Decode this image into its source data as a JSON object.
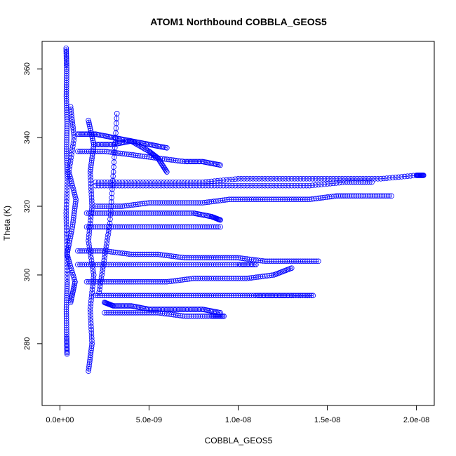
{
  "chart_data": {
    "type": "scatter",
    "title": "ATOM1 Northbound COBBLA_GEOS5",
    "xlabel": "COBBLA_GEOS5",
    "ylabel": "Theta (K)",
    "xlim": [
      -1e-09,
      2.1e-08
    ],
    "ylim": [
      262,
      368
    ],
    "x_ticks": [
      {
        "value": 0,
        "label": "0.0e+00"
      },
      {
        "value": 5e-09,
        "label": "5.0e-09"
      },
      {
        "value": 1e-08,
        "label": "1.0e-08"
      },
      {
        "value": 1.5e-08,
        "label": "1.5e-08"
      },
      {
        "value": 2e-08,
        "label": "2.0e-08"
      }
    ],
    "y_ticks": [
      {
        "value": 280,
        "label": "280"
      },
      {
        "value": 300,
        "label": "300"
      },
      {
        "value": 320,
        "label": "320"
      },
      {
        "value": 340,
        "label": "340"
      },
      {
        "value": 360,
        "label": "360"
      }
    ],
    "grid": false,
    "marker": "open-circle",
    "connected": true,
    "color": "#0000ff",
    "series": [
      {
        "x": [
          3.5e-10,
          3.8e-10,
          3.6e-10,
          4e-10,
          3.7e-10,
          4.2e-10,
          3.5e-10,
          3.9e-10,
          4.1e-10,
          3.6e-10,
          3.8e-10,
          4e-10
        ],
        "y": [
          366,
          360,
          352,
          344,
          336,
          328,
          318,
          308,
          298,
          290,
          282,
          277
        ]
      },
      {
        "x": [
          6e-10,
          8e-10,
          5e-10,
          9e-10,
          7e-10,
          4e-10,
          8.5e-10,
          6e-10
        ],
        "y": [
          349,
          340,
          330,
          322,
          314,
          306,
          298,
          292
        ]
      },
      {
        "x": [
          1.6e-09,
          1.8e-09,
          1.7e-09,
          1.9e-09,
          1.6e-09,
          1.8e-09,
          1.7e-09,
          1.9e-09,
          1.6e-09
        ],
        "y": [
          272,
          280,
          290,
          300,
          310,
          320,
          330,
          338,
          345
        ]
      },
      {
        "x": [
          2.2e-09,
          2.5e-09,
          2.8e-09,
          3e-09,
          3.2e-09
        ],
        "y": [
          295,
          305,
          315,
          330,
          347
        ]
      },
      {
        "x": [
          1e-09,
          2e-09,
          3e-09,
          4e-09,
          5e-09,
          6e-09
        ],
        "y": [
          341,
          341,
          340,
          339,
          338,
          337
        ]
      },
      {
        "x": [
          1e-09,
          2.5e-09,
          4e-09,
          5.5e-09,
          7e-09,
          8e-09,
          9e-09
        ],
        "y": [
          336,
          336,
          335,
          334,
          333,
          333,
          332
        ]
      },
      {
        "x": [
          2e-09,
          4e-09,
          6e-09,
          8e-09,
          1e-08,
          1.2e-08,
          1.4e-08,
          1.6e-08,
          1.8e-08,
          2e-08,
          2.04e-08
        ],
        "y": [
          327,
          327,
          327,
          327,
          328,
          328,
          328,
          328,
          328,
          329,
          329
        ]
      },
      {
        "x": [
          2e-09,
          4e-09,
          6e-09,
          8e-09,
          1e-08,
          1.2e-08,
          1.4e-08,
          1.6e-08,
          1.75e-08
        ],
        "y": [
          326,
          326,
          326,
          326,
          326,
          326,
          326,
          327,
          327
        ]
      },
      {
        "x": [
          2e-09,
          3.5e-09,
          5e-09,
          6.5e-09,
          8e-09,
          9.5e-09,
          1.1e-08,
          1.25e-08,
          1.4e-08,
          1.55e-08,
          1.7e-08,
          1.86e-08
        ],
        "y": [
          320,
          320,
          321,
          321,
          321,
          322,
          322,
          322,
          322,
          323,
          323,
          323
        ]
      },
      {
        "x": [
          1.5e-09,
          3e-09,
          4.5e-09,
          6e-09,
          7.5e-09,
          8.5e-09,
          9e-09
        ],
        "y": [
          318,
          318,
          318,
          318,
          318,
          317,
          316
        ]
      },
      {
        "x": [
          1.5e-09,
          3e-09,
          4.5e-09,
          6e-09,
          7.5e-09,
          9e-09
        ],
        "y": [
          314,
          314,
          314,
          314,
          314,
          314
        ]
      },
      {
        "x": [
          1e-09,
          2.5e-09,
          4e-09,
          5.5e-09,
          7e-09,
          8.5e-09,
          1e-08,
          1.15e-08,
          1.3e-08,
          1.45e-08
        ],
        "y": [
          307,
          307,
          306,
          306,
          305,
          305,
          305,
          304,
          304,
          304
        ]
      },
      {
        "x": [
          1e-09,
          2.5e-09,
          4e-09,
          5.5e-09,
          7e-09,
          8.5e-09,
          1e-08,
          1.1e-08
        ],
        "y": [
          303,
          303,
          303,
          303,
          303,
          303,
          303,
          303
        ]
      },
      {
        "x": [
          1.5e-09,
          3e-09,
          4.5e-09,
          6e-09,
          7.5e-09,
          9e-09,
          1.05e-08,
          1.2e-08,
          1.3e-08
        ],
        "y": [
          298,
          298,
          298,
          298,
          299,
          299,
          299,
          300,
          302
        ]
      },
      {
        "x": [
          2e-09,
          3.5e-09,
          5e-09,
          6.5e-09,
          8e-09,
          9.5e-09,
          1.1e-08,
          1.2e-08,
          1.3e-08,
          1.42e-08
        ],
        "y": [
          294,
          294,
          294,
          294,
          294,
          294,
          294,
          294,
          294,
          294
        ]
      },
      {
        "x": [
          2.5e-09,
          4e-09,
          5.5e-09,
          7e-09,
          8.5e-09,
          9.2e-09
        ],
        "y": [
          289,
          289,
          289,
          288,
          288,
          288
        ]
      },
      {
        "x": [
          2.5e-09,
          3e-09,
          4e-09,
          5e-09,
          6e-09,
          7e-09,
          8e-09,
          9e-09
        ],
        "y": [
          292,
          291,
          291,
          290,
          290,
          290,
          290,
          289
        ]
      },
      {
        "x": [
          2e-09,
          3e-09,
          4e-09,
          5e-09,
          5.5e-09,
          6e-09
        ],
        "y": [
          338,
          338,
          339,
          336,
          334,
          330
        ]
      }
    ]
  }
}
